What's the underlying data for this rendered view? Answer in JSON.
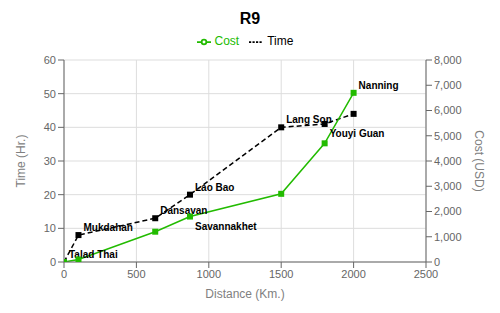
{
  "chart_data": {
    "type": "line",
    "title": "R9",
    "x_label": "Distance (Km.)",
    "y_label": "Time (Hr.)",
    "y2_label": "Cost (USD)",
    "x": [
      0,
      100,
      630,
      870,
      1500,
      1800,
      2000
    ],
    "series": [
      {
        "name": "Time",
        "color": "black",
        "values": [
          0,
          8,
          13,
          20,
          40,
          41,
          44
        ],
        "marker": "square",
        "line_style": "dashed"
      },
      {
        "name": "Cost",
        "color": "#22bb00",
        "values": [
          0,
          100,
          1200,
          1800,
          2700,
          4700,
          6700
        ],
        "marker": "square",
        "line_style": "solid",
        "axis": "y2"
      }
    ],
    "xlim": [
      0,
      2500
    ],
    "xticks": [
      0,
      500,
      1000,
      1500,
      2000,
      2500
    ],
    "ylim": [
      0,
      60
    ],
    "yticks": [
      0,
      10,
      20,
      30,
      40,
      50,
      60
    ],
    "y2lim": [
      0,
      8000
    ],
    "y2ticks": [
      0,
      {
        "value": 1000,
        "label": "1,000"
      },
      {
        "value": 2000,
        "label": "2,000"
      },
      {
        "value": 3000,
        "label": "3,000"
      },
      {
        "value": 4000,
        "label": "4,000"
      },
      {
        "value": 5000,
        "label": "5,000"
      },
      {
        "value": 6000,
        "label": "6,000"
      },
      {
        "value": 7000,
        "label": "7,000"
      },
      {
        "value": 8000,
        "label": "8,000"
      }
    ],
    "grid": true,
    "legend": "top",
    "annotations": [
      {
        "text": "Talad Thai",
        "x": 0,
        "y": 0
      },
      {
        "text": "Mukdahan",
        "x": 100,
        "y": 8
      },
      {
        "text": "Dansavan",
        "x": 630,
        "y": 13
      },
      {
        "text": "Savannakhet",
        "x": 870,
        "y": 1800,
        "axis": "y2"
      },
      {
        "text": "Lao Bao",
        "x": 870,
        "y": 20
      },
      {
        "text": "Lang Son",
        "x": 1500,
        "y": 40
      },
      {
        "text": "Youyi Guan",
        "x": 1800,
        "y": 41
      },
      {
        "text": "Nanning",
        "x": 2000,
        "y": 6700,
        "axis": "y2"
      }
    ]
  }
}
